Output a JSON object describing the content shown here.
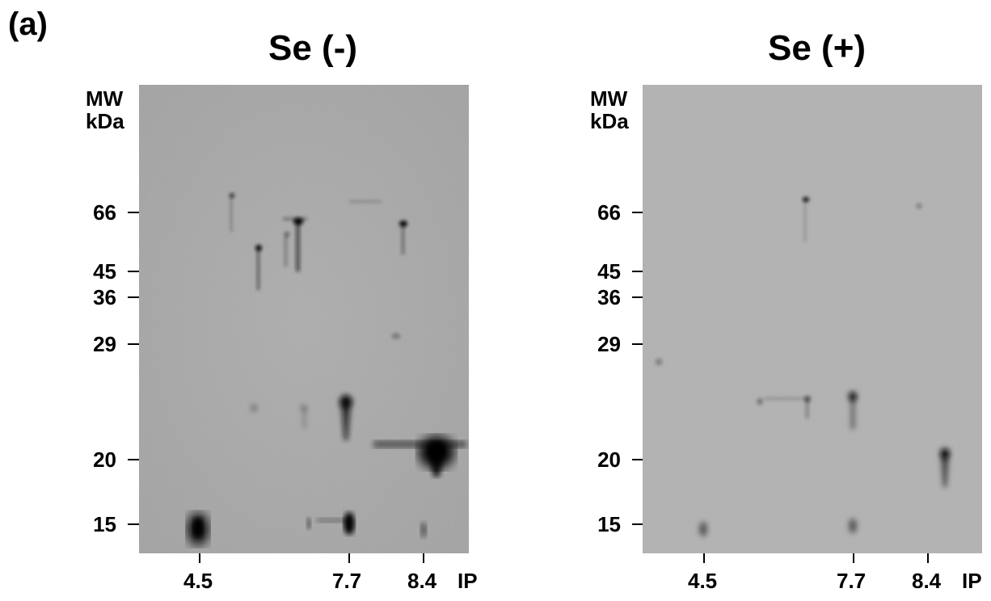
{
  "figure": {
    "panel_label": "(a)",
    "panels": [
      {
        "id": "se-minus",
        "title": "Se (-)",
        "mw_label_line1": "MW",
        "mw_label_line2": "kDa",
        "mw_markers": [
          "66",
          "45",
          "36",
          "29",
          "20",
          "15"
        ],
        "ip_ticks": [
          "4.5",
          "7.7",
          "8.4"
        ],
        "ip_axis_label": "IP"
      },
      {
        "id": "se-plus",
        "title": "Se (+)",
        "mw_label_line1": "MW",
        "mw_label_line2": "kDa",
        "mw_markers": [
          "66",
          "45",
          "36",
          "29",
          "20",
          "15"
        ],
        "ip_ticks": [
          "4.5",
          "7.7",
          "8.4"
        ],
        "ip_axis_label": "IP"
      }
    ],
    "colors": {
      "gel_background_left": "#a9a9a9",
      "gel_background_right": "#b0b0b0",
      "spot": "#0a0a0a"
    }
  }
}
